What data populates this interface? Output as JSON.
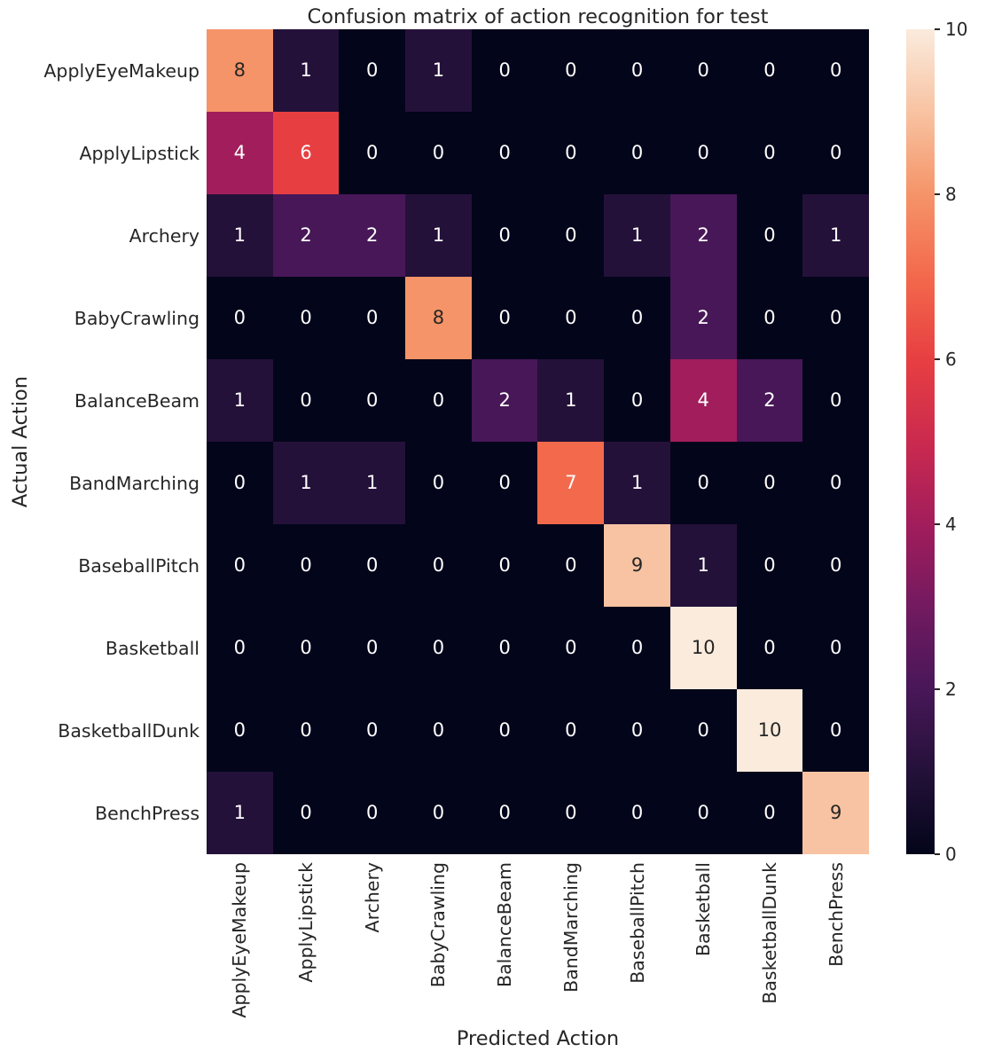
{
  "chart_data": {
    "type": "heatmap",
    "title": "Confusion matrix of action recognition for test",
    "xlabel": "Predicted Action",
    "ylabel": "Actual Action",
    "categories": [
      "ApplyEyeMakeup",
      "ApplyLipstick",
      "Archery",
      "BabyCrawling",
      "BalanceBeam",
      "BandMarching",
      "BaseballPitch",
      "Basketball",
      "BasketballDunk",
      "BenchPress"
    ],
    "matrix": [
      [
        8,
        1,
        0,
        1,
        0,
        0,
        0,
        0,
        0,
        0
      ],
      [
        4,
        6,
        0,
        0,
        0,
        0,
        0,
        0,
        0,
        0
      ],
      [
        1,
        2,
        2,
        1,
        0,
        0,
        1,
        2,
        0,
        1
      ],
      [
        0,
        0,
        0,
        8,
        0,
        0,
        0,
        2,
        0,
        0
      ],
      [
        1,
        0,
        0,
        0,
        2,
        1,
        0,
        4,
        2,
        0
      ],
      [
        0,
        1,
        1,
        0,
        0,
        7,
        1,
        0,
        0,
        0
      ],
      [
        0,
        0,
        0,
        0,
        0,
        0,
        9,
        1,
        0,
        0
      ],
      [
        0,
        0,
        0,
        0,
        0,
        0,
        0,
        10,
        0,
        0
      ],
      [
        0,
        0,
        0,
        0,
        0,
        0,
        0,
        0,
        10,
        0
      ],
      [
        1,
        0,
        0,
        0,
        0,
        0,
        0,
        0,
        0,
        9
      ]
    ],
    "vmin": 0,
    "vmax": 10,
    "colorbar_ticks": [
      0,
      2,
      4,
      6,
      8,
      10
    ],
    "colormap_name": "rocket",
    "colormap": [
      "#03051A",
      "#241139",
      "#481758",
      "#731A60",
      "#A21D5B",
      "#CB2A4F",
      "#E73F41",
      "#F3694C",
      "#F59468",
      "#F8C3A2",
      "#FAEBDD"
    ],
    "annot": {
      "light": "#FFFFFF",
      "dark": "#262626",
      "dark_threshold": 8
    },
    "text_color": "#262626",
    "grid": false,
    "legend": "colorbar-right"
  }
}
